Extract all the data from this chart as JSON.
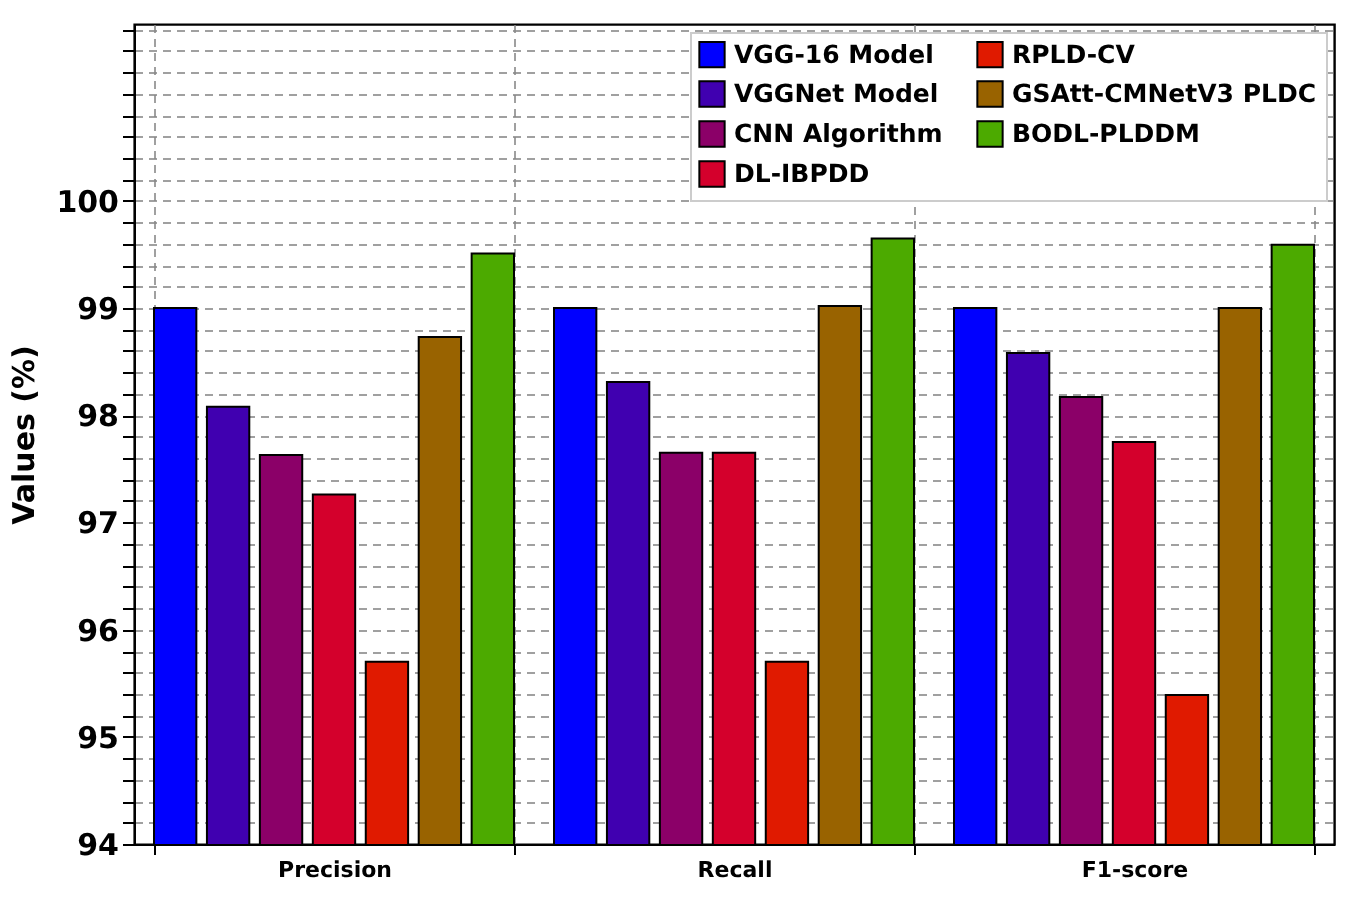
{
  "chart_data": {
    "type": "bar",
    "ylabel": "Values (%)",
    "categories": [
      "Precision",
      "Recall",
      "F1-score"
    ],
    "series": [
      {
        "name": "VGG-16 Model",
        "color": "#0000ff",
        "values": [
          99.0,
          99.0,
          99.0
        ]
      },
      {
        "name": "VGGNet Model",
        "color": "#4000b0",
        "values": [
          98.08,
          98.31,
          98.58
        ]
      },
      {
        "name": "CNN Algorithm",
        "color": "#8b0068",
        "values": [
          97.63,
          97.65,
          98.17
        ]
      },
      {
        "name": "DL-IBPDD",
        "color": "#d4002c",
        "values": [
          97.26,
          97.65,
          97.75
        ]
      },
      {
        "name": "RPLD-CV",
        "color": "#e01a00",
        "values": [
          95.7,
          95.7,
          95.39
        ]
      },
      {
        "name": "GSAtt-CMNetV3 PLDC",
        "color": "#996300",
        "values": [
          98.73,
          99.02,
          99.0
        ]
      },
      {
        "name": "BODL-PLDDM",
        "color": "#4caa00",
        "values": [
          99.51,
          99.65,
          99.59
        ]
      }
    ],
    "ylim": [
      94,
      101.65
    ],
    "yticks": [
      94,
      {
        "value": 94.2,
        "label": null
      },
      {
        "value": 94.4,
        "label": null
      },
      {
        "value": 94.6,
        "label": null
      },
      {
        "value": 94.8,
        "label": null
      },
      95,
      {
        "value": 95.2,
        "label": null
      },
      {
        "value": 95.4,
        "label": null
      },
      {
        "value": 95.6,
        "label": null
      },
      {
        "value": 95.8,
        "label": null
      },
      96,
      {
        "value": 96.2,
        "label": null
      },
      {
        "value": 96.4,
        "label": null
      },
      {
        "value": 96.6,
        "label": null
      },
      {
        "value": 96.8,
        "label": null
      },
      97,
      {
        "value": 97.2,
        "label": null
      },
      {
        "value": 97.4,
        "label": null
      },
      {
        "value": 97.6,
        "label": null
      },
      {
        "value": 97.8,
        "label": null
      },
      98,
      {
        "value": 98.2,
        "label": null
      },
      {
        "value": 98.4,
        "label": null
      },
      {
        "value": 98.6,
        "label": null
      },
      {
        "value": 98.8,
        "label": null
      },
      99,
      {
        "value": 99.2,
        "label": null
      },
      {
        "value": 99.4,
        "label": null
      },
      {
        "value": 99.6,
        "label": null
      },
      {
        "value": 99.8,
        "label": null
      },
      100,
      {
        "value": 100.2,
        "label": null
      },
      {
        "value": 100.4,
        "label": null
      },
      {
        "value": 100.6,
        "label": null
      },
      {
        "value": 100.8,
        "label": null
      },
      {
        "value": 101.0,
        "label": null
      },
      {
        "value": 101.2,
        "label": null
      },
      {
        "value": 101.4,
        "label": null
      },
      {
        "value": 101.6,
        "label": null
      }
    ],
    "grid": true,
    "legend": "top right"
  }
}
